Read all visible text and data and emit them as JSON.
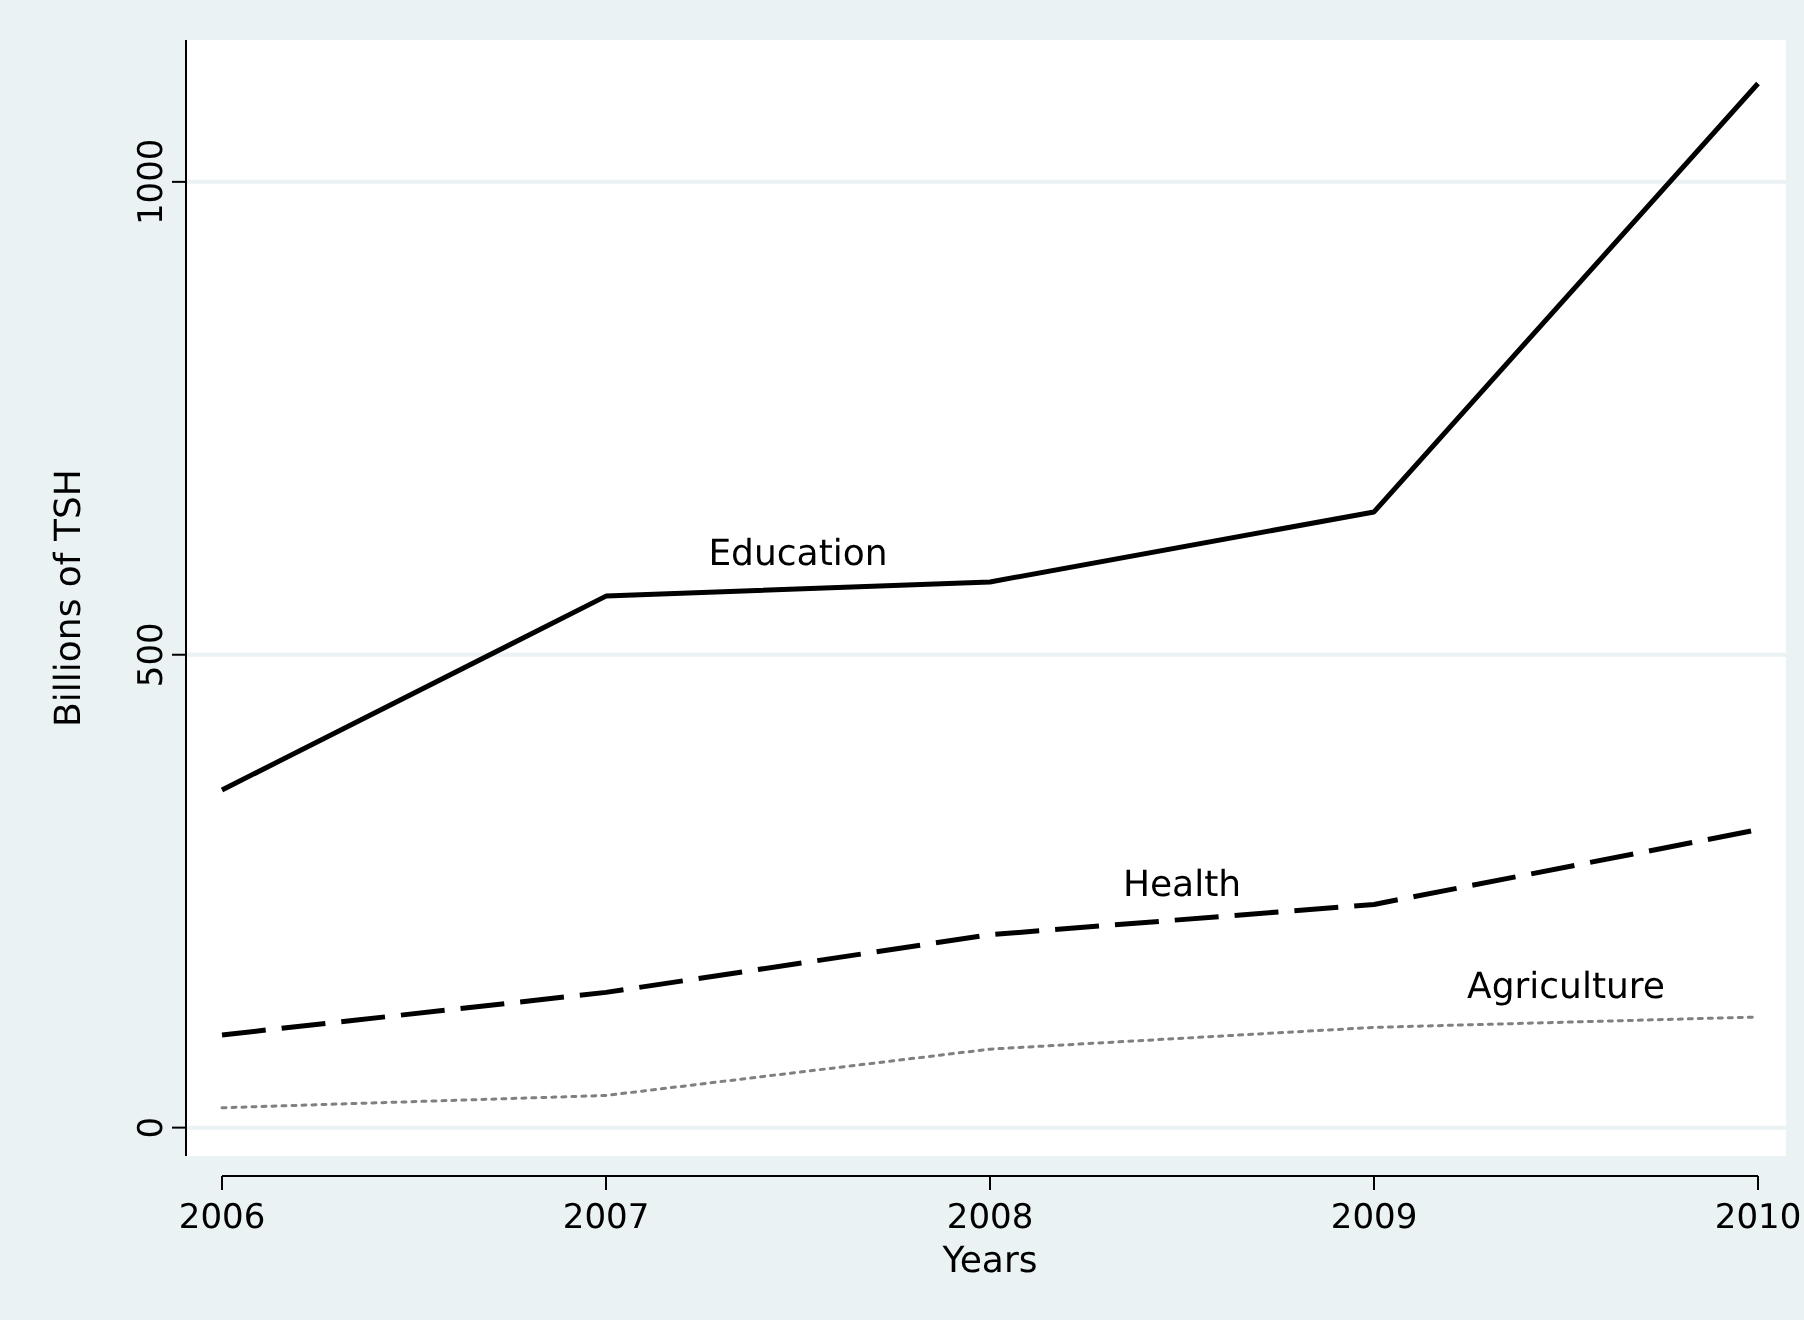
{
  "chart_data": {
    "type": "line",
    "xlabel": "Years",
    "ylabel": "Billions of TSH",
    "x": [
      2006,
      2007,
      2008,
      2009,
      2010
    ],
    "xlim": [
      2006,
      2010
    ],
    "xticks": [
      2006,
      2007,
      2008,
      2009,
      2010
    ],
    "ylim": [
      -30,
      1150
    ],
    "yticks": [
      0,
      500,
      1000
    ],
    "grid": "y",
    "marker": "none",
    "series": [
      {
        "name": "Education",
        "color": "#000000",
        "line_style": "solid",
        "values": [
          357,
          562,
          577,
          651,
          1104
        ]
      },
      {
        "name": "Health",
        "color": "#000000",
        "line_style": "dashed",
        "values": [
          98,
          143,
          204,
          236,
          315
        ]
      },
      {
        "name": "Agriculture",
        "color": "#808080",
        "line_style": "dotted",
        "values": [
          21,
          34,
          83,
          106,
          117
        ]
      }
    ]
  }
}
